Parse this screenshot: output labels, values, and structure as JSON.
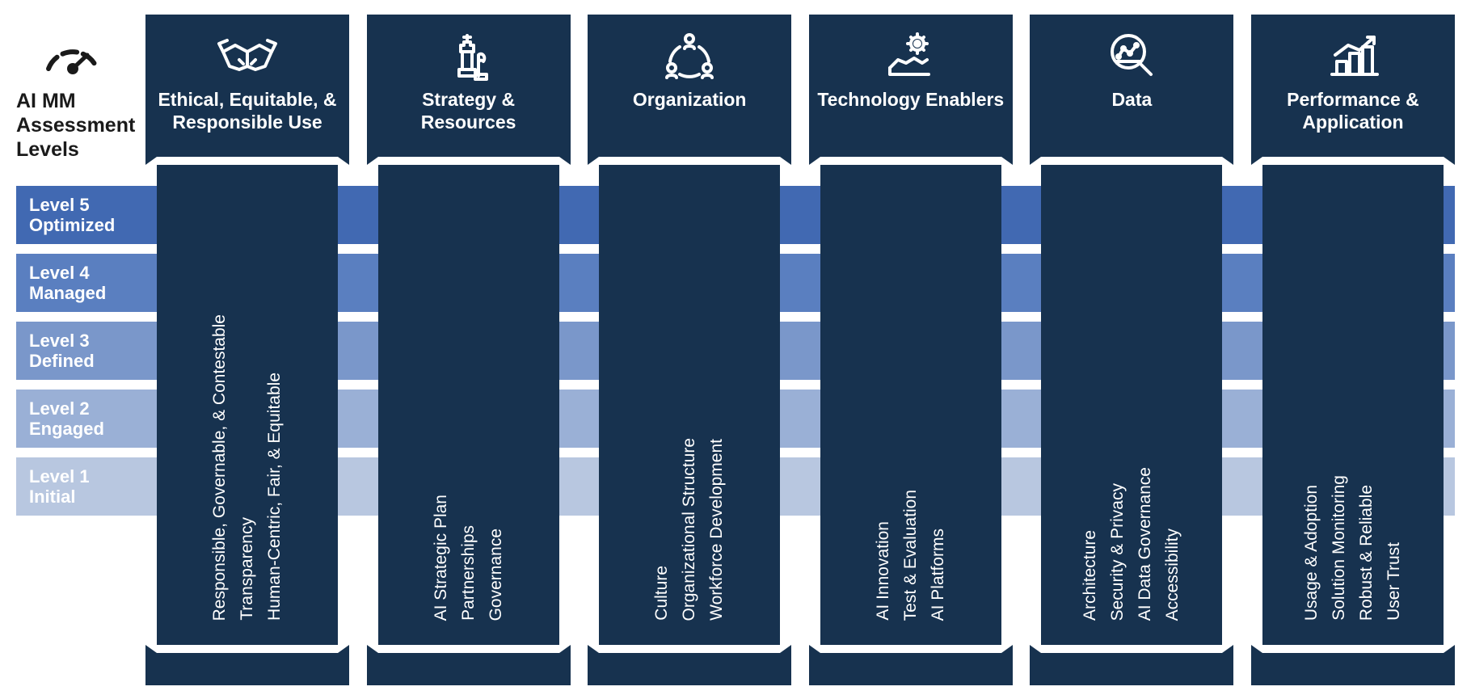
{
  "header": {
    "title": "AI MM Assessment Levels"
  },
  "levels": [
    {
      "label": "Level 5\nOptimized",
      "color": "#4169b2"
    },
    {
      "label": "Level 4\nManaged",
      "color": "#5a7fc0"
    },
    {
      "label": "Level 3\nDefined",
      "color": "#7a97ca"
    },
    {
      "label": "Level 2\nEngaged",
      "color": "#9ab0d6"
    },
    {
      "label": "Level 1\nInitial",
      "color": "#b8c7e0"
    }
  ],
  "pillars": [
    {
      "title": "Ethical, Equitable, & Responsible Use",
      "icon": "handshake",
      "items": [
        "Responsible, Governable, & Contestable",
        "Transparency",
        "Human-Centric, Fair, & Equitable"
      ]
    },
    {
      "title": "Strategy & Resources",
      "icon": "chess",
      "items": [
        "AI Strategic Plan",
        "Partnerships",
        "Governance"
      ]
    },
    {
      "title": "Organization",
      "icon": "org",
      "items": [
        "Culture",
        "Organizational Structure",
        "Workforce Development"
      ]
    },
    {
      "title": "Technology Enablers",
      "icon": "tech",
      "items": [
        "AI Innovation",
        "Test & Evaluation",
        "AI Platforms"
      ]
    },
    {
      "title": "Data",
      "icon": "data",
      "items": [
        "Architecture",
        "Security & Privacy",
        "AI Data Governance",
        "Accessibility"
      ]
    },
    {
      "title": "Performance & Application",
      "icon": "performance",
      "items": [
        "Usage & Adoption",
        "Solution Monitoring",
        "Robust & Reliable",
        "User Trust"
      ]
    }
  ],
  "styling": {
    "pillar_color": "#17324f",
    "text_color": "#ffffff",
    "background_color": "#ffffff",
    "header_text_color": "#1a1a1a"
  }
}
